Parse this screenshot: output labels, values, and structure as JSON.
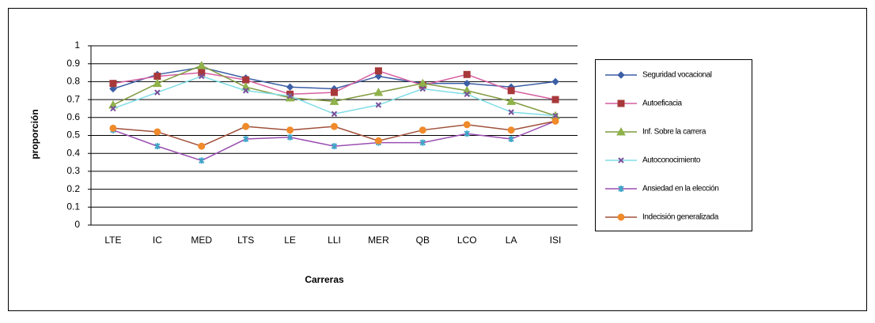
{
  "chart_data": {
    "type": "line",
    "x_label": "Carreras",
    "y_label": "proporción",
    "categories": [
      "LTE",
      "IC",
      "MED",
      "LTS",
      "LE",
      "LLI",
      "MER",
      "QB",
      "LCO",
      "LA",
      "ISI"
    ],
    "ylim": [
      0,
      1
    ],
    "yticks": [
      0,
      0.1,
      0.2,
      0.3,
      0.4,
      0.5,
      0.6,
      0.7,
      0.8,
      0.9,
      1
    ],
    "grid": true,
    "legend": "right",
    "series": [
      {
        "name": "Seguridad vocacional",
        "color": "#3c5fa6",
        "marker_color": "#3c5fa6",
        "marker": "diamond",
        "values": [
          0.76,
          0.84,
          0.88,
          0.82,
          0.77,
          0.76,
          0.83,
          0.79,
          0.79,
          0.77,
          0.8
        ]
      },
      {
        "name": "Autoeficacia",
        "color": "#d65fa0",
        "marker_color": "#a8383a",
        "marker": "square",
        "values": [
          0.79,
          0.83,
          0.85,
          0.81,
          0.73,
          0.74,
          0.86,
          0.78,
          0.84,
          0.75,
          0.7
        ]
      },
      {
        "name": "Inf. Sobre la carrera",
        "color": "#7f9a3e",
        "marker_color": "#8fb24a",
        "marker": "triangle",
        "values": [
          0.67,
          0.79,
          0.89,
          0.77,
          0.71,
          0.69,
          0.74,
          0.79,
          0.75,
          0.69,
          0.61
        ]
      },
      {
        "name": "Autoconocimiento",
        "color": "#7fdde6",
        "marker_color": "#7a4f9a",
        "marker": "x",
        "values": [
          0.65,
          0.74,
          0.83,
          0.75,
          0.72,
          0.62,
          0.67,
          0.76,
          0.73,
          0.63,
          0.61
        ]
      },
      {
        "name": "Ansiedad en la elección",
        "color": "#9a4fb0",
        "marker_color": "#3fa6c8",
        "marker": "star",
        "values": [
          0.53,
          0.44,
          0.36,
          0.48,
          0.49,
          0.44,
          0.46,
          0.46,
          0.51,
          0.48,
          0.58
        ]
      },
      {
        "name": "Indecisión generalizada",
        "color": "#a0503a",
        "marker_color": "#f08a2a",
        "marker": "circle",
        "values": [
          0.54,
          0.52,
          0.44,
          0.55,
          0.53,
          0.55,
          0.47,
          0.53,
          0.56,
          0.53,
          0.58
        ]
      }
    ]
  }
}
